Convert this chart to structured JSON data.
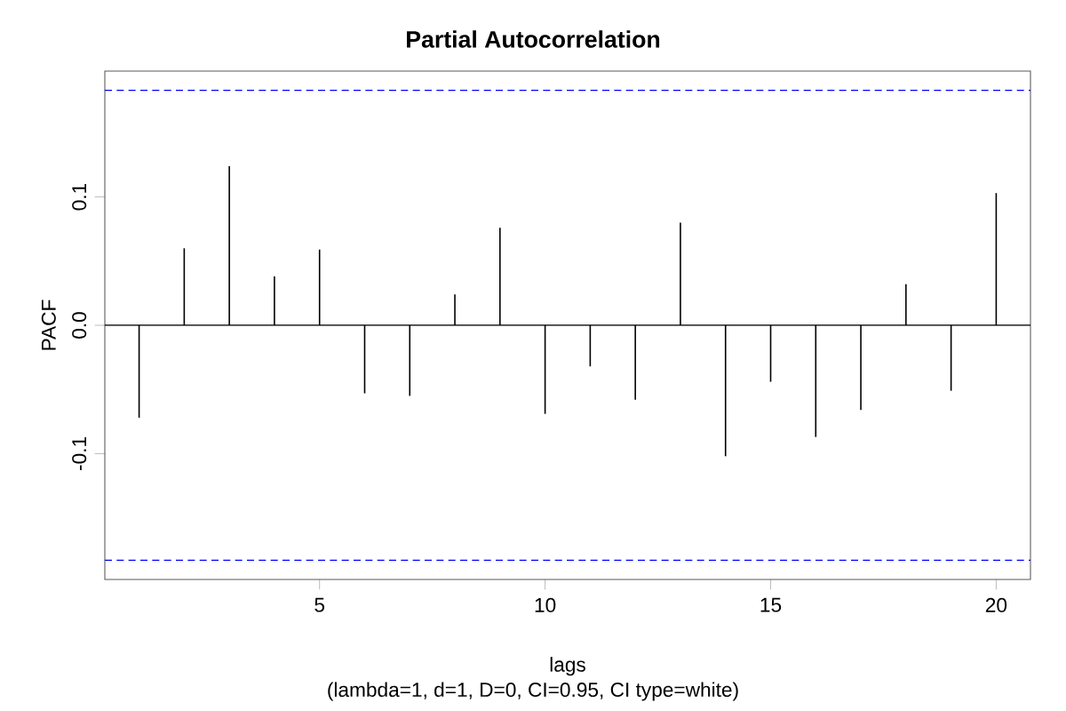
{
  "chart_data": {
    "type": "bar",
    "title": "Partial Autocorrelation",
    "xlabel": "lags",
    "ylabel": "PACF",
    "annotations": [
      "(lambda=1, d=1, D=0, CI=0.95, CI type=white)"
    ],
    "x": [
      1,
      2,
      3,
      4,
      5,
      6,
      7,
      8,
      9,
      10,
      11,
      12,
      13,
      14,
      15,
      16,
      17,
      18,
      19,
      20
    ],
    "values": [
      -0.072,
      0.06,
      0.124,
      0.038,
      0.059,
      -0.053,
      -0.055,
      0.024,
      0.076,
      -0.069,
      -0.032,
      -0.058,
      0.08,
      -0.102,
      -0.044,
      -0.087,
      -0.066,
      0.032,
      -0.051,
      0.103
    ],
    "color": "#000000",
    "xlim": [
      0.24,
      20.76
    ],
    "ylim": [
      -0.198,
      0.198
    ],
    "xticks": [
      5,
      10,
      15,
      20
    ],
    "yticks": [
      {
        "value": -0.1,
        "label": "-0.1"
      },
      {
        "value": 0.0,
        "label": "0.0"
      },
      {
        "value": 0.1,
        "label": "0.1"
      }
    ],
    "ref_lines": [
      {
        "axis": "y",
        "value": 0.183,
        "color": "#0000ff",
        "line_style": "dashed"
      },
      {
        "axis": "y",
        "value": -0.183,
        "color": "#0000ff",
        "line_style": "dashed"
      },
      {
        "axis": "y",
        "value": 0,
        "color": "#000000",
        "line_style": "solid"
      }
    ],
    "grid": false
  }
}
